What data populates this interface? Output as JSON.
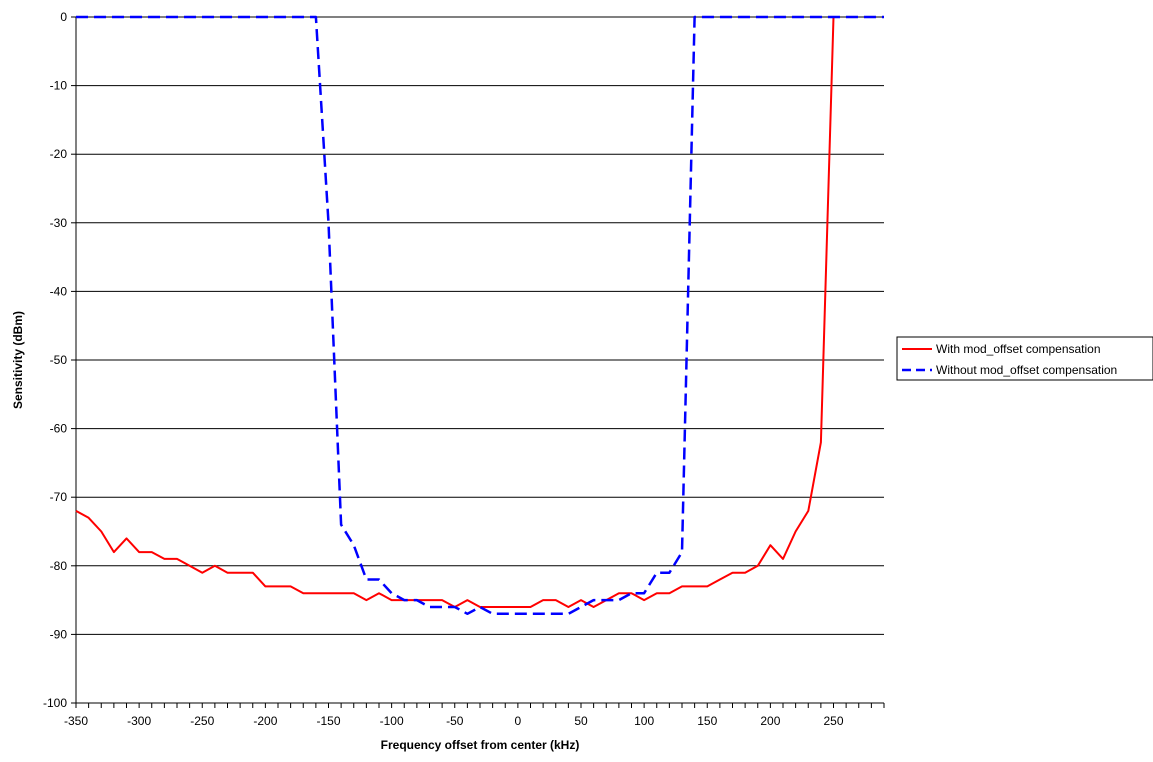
{
  "chart_data": {
    "type": "line",
    "title": "",
    "xlabel": "Frequency offset from center (kHz)",
    "ylabel": "Sensitivity (dBm)",
    "xlim": [
      -350,
      290
    ],
    "ylim": [
      -100,
      0
    ],
    "x_ticks": [
      -350,
      -300,
      -250,
      -200,
      -150,
      -100,
      -50,
      0,
      50,
      100,
      150,
      200,
      250
    ],
    "y_ticks": [
      0,
      -10,
      -20,
      -30,
      -40,
      -50,
      -60,
      -70,
      -80,
      -90,
      -100
    ],
    "x_minor_step": 10,
    "grid": "horizontal",
    "legend_position": "right",
    "series": [
      {
        "name": "With mod_offset compensation",
        "color": "#ff0000",
        "dash": "solid",
        "points": [
          [
            -350,
            -72
          ],
          [
            -340,
            -73
          ],
          [
            -330,
            -75
          ],
          [
            -320,
            -78
          ],
          [
            -310,
            -76
          ],
          [
            -300,
            -78
          ],
          [
            -290,
            -78
          ],
          [
            -280,
            -79
          ],
          [
            -270,
            -79
          ],
          [
            -260,
            -80
          ],
          [
            -250,
            -81
          ],
          [
            -240,
            -80
          ],
          [
            -230,
            -81
          ],
          [
            -220,
            -81
          ],
          [
            -210,
            -81
          ],
          [
            -200,
            -83
          ],
          [
            -190,
            -83
          ],
          [
            -180,
            -83
          ],
          [
            -170,
            -84
          ],
          [
            -160,
            -84
          ],
          [
            -150,
            -84
          ],
          [
            -140,
            -84
          ],
          [
            -130,
            -84
          ],
          [
            -120,
            -85
          ],
          [
            -110,
            -84
          ],
          [
            -100,
            -85
          ],
          [
            -90,
            -85
          ],
          [
            -80,
            -85
          ],
          [
            -70,
            -85
          ],
          [
            -60,
            -85
          ],
          [
            -50,
            -86
          ],
          [
            -40,
            -85
          ],
          [
            -30,
            -86
          ],
          [
            -20,
            -86
          ],
          [
            -10,
            -86
          ],
          [
            0,
            -86
          ],
          [
            10,
            -86
          ],
          [
            20,
            -85
          ],
          [
            30,
            -85
          ],
          [
            40,
            -86
          ],
          [
            50,
            -85
          ],
          [
            60,
            -86
          ],
          [
            70,
            -85
          ],
          [
            80,
            -84
          ],
          [
            90,
            -84
          ],
          [
            100,
            -85
          ],
          [
            110,
            -84
          ],
          [
            120,
            -84
          ],
          [
            130,
            -83
          ],
          [
            140,
            -83
          ],
          [
            150,
            -83
          ],
          [
            160,
            -82
          ],
          [
            170,
            -81
          ],
          [
            180,
            -81
          ],
          [
            190,
            -80
          ],
          [
            200,
            -77
          ],
          [
            210,
            -79
          ],
          [
            220,
            -75
          ],
          [
            230,
            -72
          ],
          [
            240,
            -62
          ],
          [
            250,
            0
          ]
        ]
      },
      {
        "name": "Without mod_offset compensation",
        "color": "#0000ff",
        "dash": "dashed",
        "points": [
          [
            -350,
            0
          ],
          [
            -160,
            0
          ],
          [
            -150,
            -30
          ],
          [
            -140,
            -74
          ],
          [
            -130,
            -77
          ],
          [
            -120,
            -82
          ],
          [
            -110,
            -82
          ],
          [
            -100,
            -84
          ],
          [
            -90,
            -85
          ],
          [
            -80,
            -85
          ],
          [
            -70,
            -86
          ],
          [
            -60,
            -86
          ],
          [
            -50,
            -86
          ],
          [
            -40,
            -87
          ],
          [
            -30,
            -86
          ],
          [
            -20,
            -87
          ],
          [
            -10,
            -87
          ],
          [
            0,
            -87
          ],
          [
            10,
            -87
          ],
          [
            20,
            -87
          ],
          [
            30,
            -87
          ],
          [
            40,
            -87
          ],
          [
            50,
            -86
          ],
          [
            60,
            -85
          ],
          [
            70,
            -85
          ],
          [
            80,
            -85
          ],
          [
            90,
            -84
          ],
          [
            100,
            -84
          ],
          [
            110,
            -81
          ],
          [
            120,
            -81
          ],
          [
            130,
            -78
          ],
          [
            140,
            0
          ],
          [
            290,
            0
          ]
        ]
      }
    ]
  }
}
